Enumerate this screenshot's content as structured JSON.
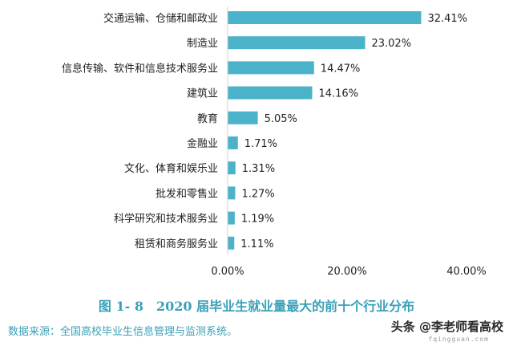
{
  "colors": {
    "bar": "#4ab3c9",
    "axis": "#d0d0d0",
    "caption": "#3aa0b8"
  },
  "caption": "图 1- 8　2020 届毕业生就业量最大的前十个行业分布",
  "source": "数据来源：全国高校毕业生信息管理与监测系统。",
  "watermark": "头条 @李老师看高校",
  "watermark_url": "fqingguan.com",
  "chart_data": {
    "type": "bar",
    "orientation": "horizontal",
    "categories": [
      "交通运输、仓储和邮政业",
      "制造业",
      "信息传输、软件和信息技术服务业",
      "建筑业",
      "教育",
      "金融业",
      "文化、体育和娱乐业",
      "批发和零售业",
      "科学研究和技术服务业",
      "租赁和商务服务业"
    ],
    "values": [
      32.41,
      23.02,
      14.47,
      14.16,
      5.05,
      1.71,
      1.31,
      1.27,
      1.19,
      1.11
    ],
    "value_labels": [
      "32.41%",
      "23.02%",
      "14.47%",
      "14.16%",
      "5.05%",
      "1.71%",
      "1.31%",
      "1.27%",
      "1.19%",
      "1.11%"
    ],
    "xlim": [
      0,
      40
    ],
    "xticks": [
      0,
      20,
      40
    ],
    "xtick_labels": [
      "0.00%",
      "20.00%",
      "40.00%"
    ],
    "grid": false,
    "legend": "none"
  }
}
